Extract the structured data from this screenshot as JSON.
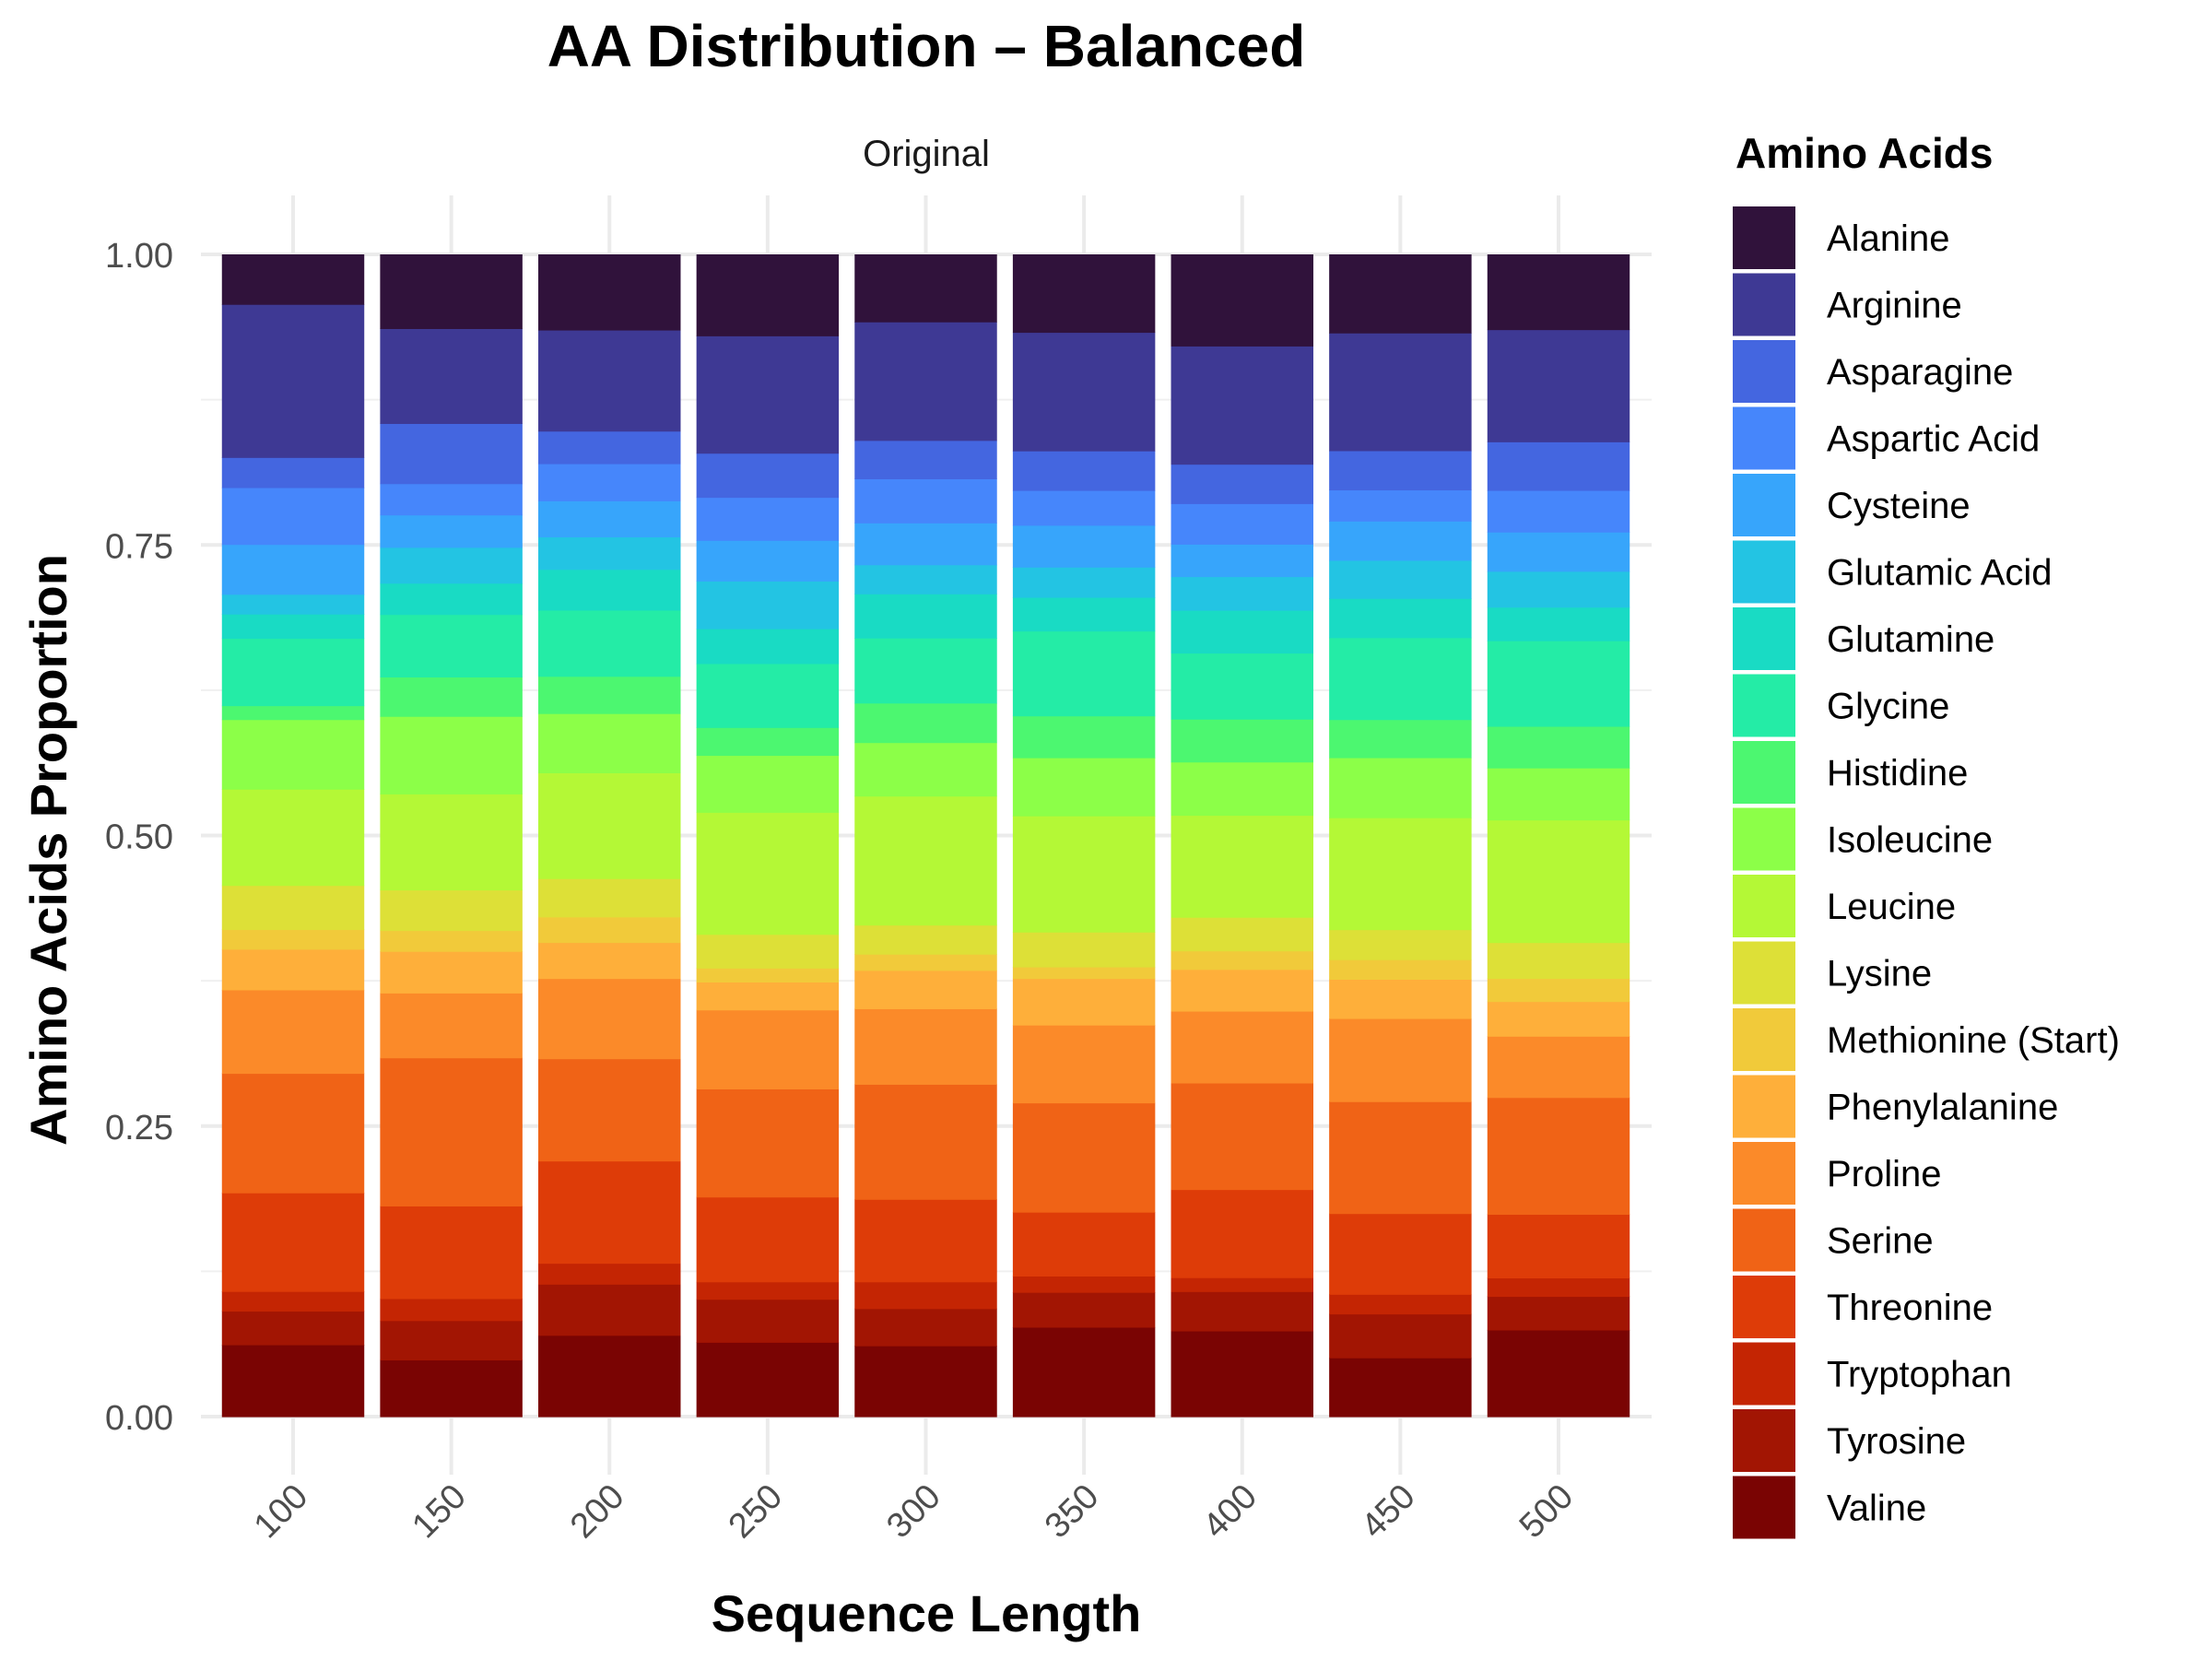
{
  "chart_data": {
    "type": "bar",
    "stacked": true,
    "title": "AA Distribution – Balanced",
    "facet_label": "Original",
    "xlabel": "Sequence Length",
    "ylabel": "Amino Acids Proportion",
    "ylim": [
      0,
      1
    ],
    "y_ticks": [
      "0.00",
      "0.25",
      "0.50",
      "0.75",
      "1.00"
    ],
    "categories": [
      "100",
      "150",
      "200",
      "250",
      "300",
      "350",
      "400",
      "450",
      "500"
    ],
    "grid": true,
    "legend_title": "Amino Acids",
    "legend_position": "right",
    "series": [
      {
        "name": "Valine",
        "color": "#7a0403",
        "values": [
          0.062,
          0.049,
          0.07,
          0.064,
          0.061,
          0.077,
          0.074,
          0.051,
          0.075
        ]
      },
      {
        "name": "Tyrosine",
        "color": "#a21503",
        "values": [
          0.029,
          0.034,
          0.044,
          0.037,
          0.032,
          0.03,
          0.034,
          0.038,
          0.029
        ]
      },
      {
        "name": "Tryptophan",
        "color": "#c42503",
        "values": [
          0.017,
          0.019,
          0.018,
          0.015,
          0.023,
          0.014,
          0.012,
          0.017,
          0.016
        ]
      },
      {
        "name": "Threonine",
        "color": "#de3c08",
        "values": [
          0.085,
          0.08,
          0.088,
          0.073,
          0.071,
          0.055,
          0.076,
          0.07,
          0.055
        ]
      },
      {
        "name": "Serine",
        "color": "#f06316",
        "values": [
          0.103,
          0.128,
          0.088,
          0.093,
          0.099,
          0.094,
          0.092,
          0.097,
          0.101
        ]
      },
      {
        "name": "Proline",
        "color": "#fb8a29",
        "values": [
          0.072,
          0.056,
          0.069,
          0.068,
          0.065,
          0.067,
          0.062,
          0.072,
          0.053
        ]
      },
      {
        "name": "Phenylalanine",
        "color": "#feaf3a",
        "values": [
          0.035,
          0.036,
          0.031,
          0.024,
          0.033,
          0.04,
          0.036,
          0.034,
          0.03
        ]
      },
      {
        "name": "Methionine (Start)",
        "color": "#f1ca3a",
        "values": [
          0.017,
          0.018,
          0.022,
          0.012,
          0.014,
          0.01,
          0.016,
          0.017,
          0.02
        ]
      },
      {
        "name": "Lysine",
        "color": "#dde037",
        "values": [
          0.038,
          0.035,
          0.033,
          0.029,
          0.025,
          0.03,
          0.029,
          0.026,
          0.031
        ]
      },
      {
        "name": "Leucine",
        "color": "#b4f836",
        "values": [
          0.083,
          0.083,
          0.091,
          0.105,
          0.111,
          0.1,
          0.088,
          0.097,
          0.106
        ]
      },
      {
        "name": "Isoleucine",
        "color": "#8cff48",
        "values": [
          0.06,
          0.067,
          0.051,
          0.049,
          0.046,
          0.05,
          0.046,
          0.052,
          0.045
        ]
      },
      {
        "name": "Histidine",
        "color": "#4cf770",
        "values": [
          0.012,
          0.034,
          0.032,
          0.024,
          0.034,
          0.036,
          0.037,
          0.033,
          0.036
        ]
      },
      {
        "name": "Glycine",
        "color": "#24eca6",
        "values": [
          0.058,
          0.054,
          0.057,
          0.055,
          0.056,
          0.073,
          0.057,
          0.071,
          0.074
        ]
      },
      {
        "name": "Glutamine",
        "color": "#19dbc4",
        "values": [
          0.021,
          0.027,
          0.035,
          0.03,
          0.038,
          0.029,
          0.037,
          0.034,
          0.029
        ]
      },
      {
        "name": "Glutamic Acid",
        "color": "#23c4e3",
        "values": [
          0.017,
          0.031,
          0.028,
          0.041,
          0.025,
          0.026,
          0.029,
          0.033,
          0.031
        ]
      },
      {
        "name": "Cysteine",
        "color": "#37a5fb",
        "values": [
          0.043,
          0.028,
          0.031,
          0.035,
          0.036,
          0.036,
          0.028,
          0.034,
          0.034
        ]
      },
      {
        "name": "Aspartic Acid",
        "color": "#4686fb",
        "values": [
          0.049,
          0.027,
          0.032,
          0.037,
          0.038,
          0.03,
          0.035,
          0.027,
          0.036
        ]
      },
      {
        "name": "Asparagine",
        "color": "#4466e0",
        "values": [
          0.026,
          0.052,
          0.028,
          0.038,
          0.033,
          0.034,
          0.034,
          0.034,
          0.042
        ]
      },
      {
        "name": "Arginine",
        "color": "#3e3994",
        "values": [
          0.132,
          0.082,
          0.087,
          0.101,
          0.102,
          0.102,
          0.102,
          0.102,
          0.097
        ]
      },
      {
        "name": "Alanine",
        "color": "#30123b",
        "values": [
          0.043,
          0.064,
          0.065,
          0.07,
          0.058,
          0.067,
          0.079,
          0.068,
          0.065
        ]
      }
    ],
    "legend_order": [
      "Alanine",
      "Arginine",
      "Asparagine",
      "Aspartic Acid",
      "Cysteine",
      "Glutamic Acid",
      "Glutamine",
      "Glycine",
      "Histidine",
      "Isoleucine",
      "Leucine",
      "Lysine",
      "Methionine (Start)",
      "Phenylalanine",
      "Proline",
      "Serine",
      "Threonine",
      "Tryptophan",
      "Tyrosine",
      "Valine"
    ]
  }
}
